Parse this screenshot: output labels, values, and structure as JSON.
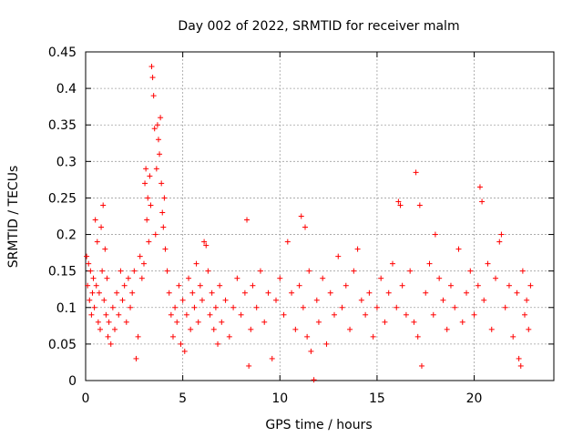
{
  "chart_data": {
    "type": "scatter",
    "title": "Day 002 of 2022, SRMTID for receiver malm",
    "xlabel": "GPS time / hours",
    "ylabel": "SRMTID / TECUs",
    "xlim": [
      0,
      24.1
    ],
    "ylim": [
      0,
      0.45
    ],
    "x_ticks": [
      0,
      5,
      10,
      15,
      20
    ],
    "x_tick_labels": [
      "0",
      "5",
      "10",
      "15",
      "20"
    ],
    "y_ticks": [
      0,
      0.05,
      0.1,
      0.15,
      0.2,
      0.25,
      0.3,
      0.35,
      0.4,
      0.45
    ],
    "y_tick_labels": [
      "0",
      "0.05",
      "0.1",
      "0.15",
      "0.2",
      "0.25",
      "0.3",
      "0.35",
      "0.4",
      "0.45"
    ],
    "grid": true,
    "marker": "+",
    "color": "#ff0000",
    "series": [
      {
        "name": "SRMTID",
        "points": [
          [
            0.05,
            0.17
          ],
          [
            0.1,
            0.13
          ],
          [
            0.15,
            0.16
          ],
          [
            0.2,
            0.11
          ],
          [
            0.25,
            0.15
          ],
          [
            0.3,
            0.09
          ],
          [
            0.35,
            0.12
          ],
          [
            0.4,
            0.14
          ],
          [
            0.45,
            0.1
          ],
          [
            0.5,
            0.22
          ],
          [
            0.55,
            0.13
          ],
          [
            0.6,
            0.19
          ],
          [
            0.65,
            0.08
          ],
          [
            0.7,
            0.12
          ],
          [
            0.75,
            0.07
          ],
          [
            0.8,
            0.21
          ],
          [
            0.85,
            0.15
          ],
          [
            0.9,
            0.24
          ],
          [
            0.95,
            0.11
          ],
          [
            1.0,
            0.18
          ],
          [
            1.05,
            0.09
          ],
          [
            1.1,
            0.14
          ],
          [
            1.15,
            0.06
          ],
          [
            1.2,
            0.08
          ],
          [
            1.3,
            0.05
          ],
          [
            1.4,
            0.1
          ],
          [
            1.5,
            0.07
          ],
          [
            1.6,
            0.12
          ],
          [
            1.7,
            0.09
          ],
          [
            1.8,
            0.15
          ],
          [
            1.9,
            0.11
          ],
          [
            2.0,
            0.13
          ],
          [
            2.1,
            0.08
          ],
          [
            2.2,
            0.14
          ],
          [
            2.3,
            0.1
          ],
          [
            2.4,
            0.12
          ],
          [
            2.5,
            0.15
          ],
          [
            2.6,
            0.03
          ],
          [
            2.7,
            0.06
          ],
          [
            2.8,
            0.17
          ],
          [
            2.9,
            0.14
          ],
          [
            3.0,
            0.16
          ],
          [
            3.05,
            0.27
          ],
          [
            3.1,
            0.29
          ],
          [
            3.15,
            0.22
          ],
          [
            3.2,
            0.25
          ],
          [
            3.25,
            0.19
          ],
          [
            3.3,
            0.28
          ],
          [
            3.35,
            0.24
          ],
          [
            3.4,
            0.43
          ],
          [
            3.45,
            0.415
          ],
          [
            3.5,
            0.39
          ],
          [
            3.55,
            0.345
          ],
          [
            3.6,
            0.2
          ],
          [
            3.65,
            0.29
          ],
          [
            3.7,
            0.35
          ],
          [
            3.75,
            0.33
          ],
          [
            3.8,
            0.31
          ],
          [
            3.85,
            0.36
          ],
          [
            3.9,
            0.27
          ],
          [
            3.95,
            0.23
          ],
          [
            4.0,
            0.21
          ],
          [
            4.05,
            0.25
          ],
          [
            4.1,
            0.18
          ],
          [
            4.2,
            0.15
          ],
          [
            4.3,
            0.12
          ],
          [
            4.4,
            0.09
          ],
          [
            4.5,
            0.06
          ],
          [
            4.6,
            0.1
          ],
          [
            4.7,
            0.08
          ],
          [
            4.8,
            0.13
          ],
          [
            4.9,
            0.05
          ],
          [
            5.0,
            0.11
          ],
          [
            5.1,
            0.04
          ],
          [
            5.2,
            0.09
          ],
          [
            5.3,
            0.14
          ],
          [
            5.4,
            0.07
          ],
          [
            5.5,
            0.12
          ],
          [
            5.6,
            0.1
          ],
          [
            5.7,
            0.16
          ],
          [
            5.8,
            0.08
          ],
          [
            5.9,
            0.13
          ],
          [
            6.0,
            0.11
          ],
          [
            6.1,
            0.19
          ],
          [
            6.2,
            0.185
          ],
          [
            6.3,
            0.15
          ],
          [
            6.4,
            0.09
          ],
          [
            6.5,
            0.12
          ],
          [
            6.6,
            0.07
          ],
          [
            6.7,
            0.1
          ],
          [
            6.8,
            0.05
          ],
          [
            6.9,
            0.13
          ],
          [
            7.0,
            0.08
          ],
          [
            7.2,
            0.11
          ],
          [
            7.4,
            0.06
          ],
          [
            7.6,
            0.1
          ],
          [
            7.8,
            0.14
          ],
          [
            8.0,
            0.09
          ],
          [
            8.2,
            0.12
          ],
          [
            8.3,
            0.22
          ],
          [
            8.4,
            0.02
          ],
          [
            8.5,
            0.07
          ],
          [
            8.6,
            0.13
          ],
          [
            8.8,
            0.1
          ],
          [
            9.0,
            0.15
          ],
          [
            9.2,
            0.08
          ],
          [
            9.4,
            0.12
          ],
          [
            9.6,
            0.03
          ],
          [
            9.8,
            0.11
          ],
          [
            10.0,
            0.14
          ],
          [
            10.2,
            0.09
          ],
          [
            10.4,
            0.19
          ],
          [
            10.6,
            0.12
          ],
          [
            10.8,
            0.07
          ],
          [
            11.0,
            0.13
          ],
          [
            11.1,
            0.225
          ],
          [
            11.2,
            0.1
          ],
          [
            11.3,
            0.21
          ],
          [
            11.4,
            0.06
          ],
          [
            11.5,
            0.15
          ],
          [
            11.6,
            0.04
          ],
          [
            11.75,
            0.001
          ],
          [
            11.9,
            0.11
          ],
          [
            12.0,
            0.08
          ],
          [
            12.2,
            0.14
          ],
          [
            12.4,
            0.05
          ],
          [
            12.6,
            0.12
          ],
          [
            12.8,
            0.09
          ],
          [
            13.0,
            0.17
          ],
          [
            13.2,
            0.1
          ],
          [
            13.4,
            0.13
          ],
          [
            13.6,
            0.07
          ],
          [
            13.8,
            0.15
          ],
          [
            14.0,
            0.18
          ],
          [
            14.2,
            0.11
          ],
          [
            14.4,
            0.09
          ],
          [
            14.6,
            0.12
          ],
          [
            14.8,
            0.06
          ],
          [
            15.0,
            0.1
          ],
          [
            15.2,
            0.14
          ],
          [
            15.4,
            0.08
          ],
          [
            15.6,
            0.12
          ],
          [
            15.8,
            0.16
          ],
          [
            16.0,
            0.1
          ],
          [
            16.1,
            0.245
          ],
          [
            16.2,
            0.24
          ],
          [
            16.3,
            0.13
          ],
          [
            16.5,
            0.09
          ],
          [
            16.7,
            0.15
          ],
          [
            16.9,
            0.08
          ],
          [
            17.0,
            0.285
          ],
          [
            17.1,
            0.06
          ],
          [
            17.2,
            0.24
          ],
          [
            17.3,
            0.02
          ],
          [
            17.5,
            0.12
          ],
          [
            17.7,
            0.16
          ],
          [
            17.9,
            0.09
          ],
          [
            18.0,
            0.2
          ],
          [
            18.2,
            0.14
          ],
          [
            18.4,
            0.11
          ],
          [
            18.6,
            0.07
          ],
          [
            18.8,
            0.13
          ],
          [
            19.0,
            0.1
          ],
          [
            19.2,
            0.18
          ],
          [
            19.4,
            0.08
          ],
          [
            19.6,
            0.12
          ],
          [
            19.8,
            0.15
          ],
          [
            20.0,
            0.09
          ],
          [
            20.2,
            0.13
          ],
          [
            20.3,
            0.265
          ],
          [
            20.4,
            0.245
          ],
          [
            20.5,
            0.11
          ],
          [
            20.7,
            0.16
          ],
          [
            20.9,
            0.07
          ],
          [
            21.1,
            0.14
          ],
          [
            21.3,
            0.19
          ],
          [
            21.4,
            0.2
          ],
          [
            21.6,
            0.1
          ],
          [
            21.8,
            0.13
          ],
          [
            22.0,
            0.06
          ],
          [
            22.2,
            0.12
          ],
          [
            22.3,
            0.03
          ],
          [
            22.4,
            0.02
          ],
          [
            22.5,
            0.15
          ],
          [
            22.6,
            0.09
          ],
          [
            22.7,
            0.11
          ],
          [
            22.8,
            0.07
          ],
          [
            22.9,
            0.13
          ]
        ]
      }
    ]
  }
}
